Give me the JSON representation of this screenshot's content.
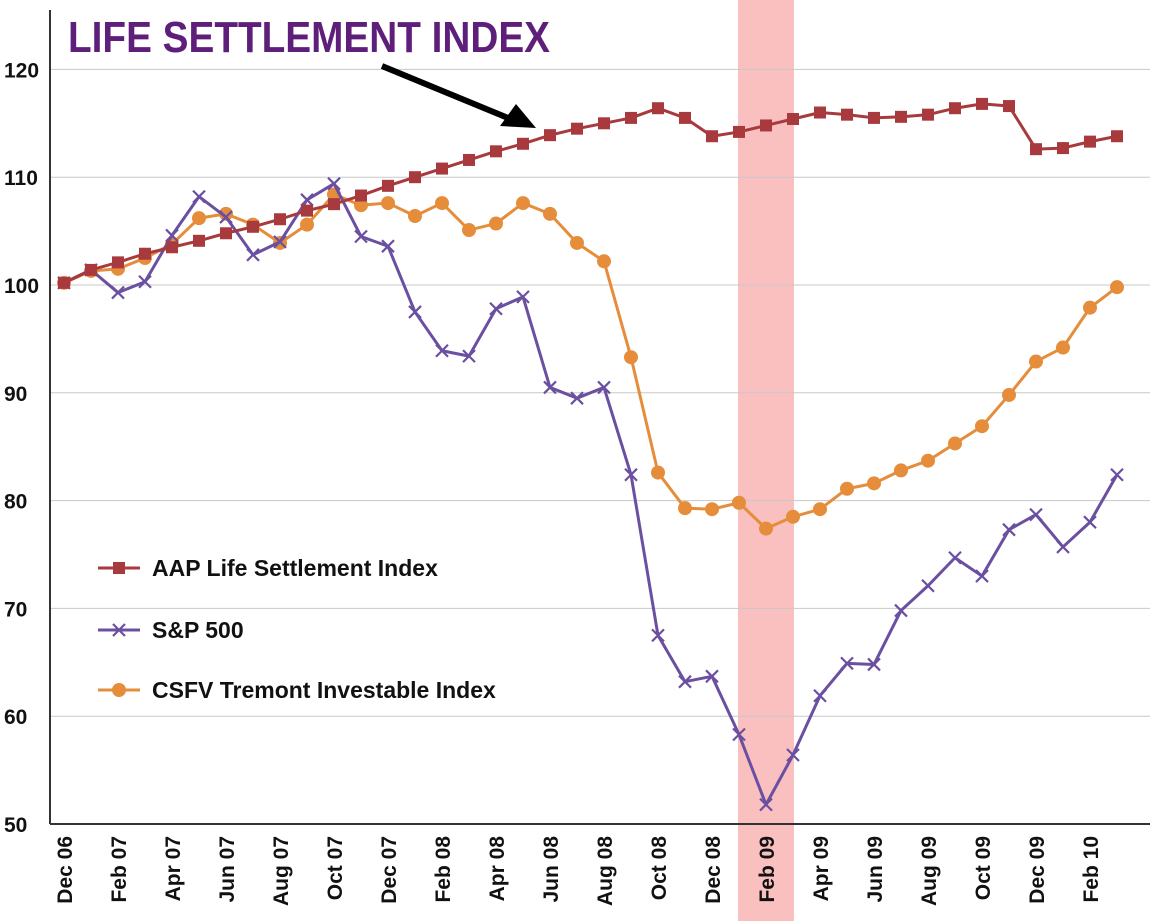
{
  "chart_data": {
    "type": "line",
    "title": "LIFE SETTLEMENT INDEX",
    "xlabel": "",
    "ylabel": "",
    "ylim": [
      50,
      125
    ],
    "yticks": [
      50,
      60,
      70,
      80,
      90,
      100,
      110,
      120
    ],
    "grid": true,
    "legend_position": "lower-left",
    "highlight": {
      "label": "Feb 09",
      "index": 26
    },
    "categories": [
      "Dec 06",
      "Jan 07",
      "Feb 07",
      "Mar 07",
      "Apr 07",
      "May 07",
      "Jun 07",
      "Jul 07",
      "Aug 07",
      "Sep 07",
      "Oct 07",
      "Nov 07",
      "Dec 07",
      "Jan 08",
      "Feb 08",
      "Mar 08",
      "Apr 08",
      "May 08",
      "Jun 08",
      "Jul 08",
      "Aug 08",
      "Sep 08",
      "Oct 08",
      "Nov 08",
      "Dec 08",
      "Jan 09",
      "Feb 09",
      "Mar 09",
      "Apr 09",
      "May 09",
      "Jun 09",
      "Jul 09",
      "Aug 09",
      "Sep 09",
      "Oct 09",
      "Nov 09",
      "Dec 09",
      "Jan 10",
      "Feb 10",
      "Mar 10"
    ],
    "xtick_labels": [
      "Dec 06",
      "Feb 07",
      "Apr 07",
      "Jun 07",
      "Aug 07",
      "Oct 07",
      "Dec 07",
      "Feb 08",
      "Apr 08",
      "Jun 08",
      "Aug 08",
      "Oct 08",
      "Dec 08",
      "Feb 09",
      "Apr 09",
      "Jun 09",
      "Aug 09",
      "Oct 09",
      "Dec 09",
      "Feb 10"
    ],
    "series": [
      {
        "name": "AAP Life Settlement Index",
        "color": "#a83a3e",
        "marker": "square",
        "values": [
          100.2,
          101.4,
          102.1,
          102.9,
          103.5,
          104.1,
          104.8,
          105.4,
          106.1,
          106.9,
          107.5,
          108.3,
          109.2,
          110.0,
          110.8,
          111.6,
          112.4,
          113.1,
          113.9,
          114.5,
          115.0,
          115.5,
          116.4,
          115.5,
          113.8,
          114.2,
          114.8,
          115.4,
          116.0,
          115.8,
          115.5,
          115.6,
          115.8,
          116.4,
          116.8,
          116.6,
          112.6,
          112.7,
          113.3,
          113.8
        ]
      },
      {
        "name": "S&P 500",
        "color": "#6b4fa0",
        "marker": "x",
        "values": [
          100.2,
          101.4,
          99.3,
          100.3,
          104.6,
          108.2,
          106.3,
          102.8,
          104.0,
          107.9,
          109.4,
          104.5,
          103.6,
          97.5,
          93.9,
          93.4,
          97.8,
          98.9,
          90.5,
          89.5,
          90.5,
          82.4,
          67.5,
          63.2,
          63.7,
          58.3,
          51.8,
          56.4,
          61.9,
          64.9,
          64.8,
          69.8,
          72.1,
          74.7,
          73.0,
          77.3,
          78.7,
          75.7,
          78.0,
          82.4
        ]
      },
      {
        "name": "CSFV Tremont Investable Index",
        "color": "#e58d3a",
        "marker": "circle",
        "values": [
          100.2,
          101.3,
          101.5,
          102.5,
          103.8,
          106.2,
          106.6,
          105.6,
          103.9,
          105.6,
          108.4,
          107.4,
          107.6,
          106.4,
          107.6,
          105.1,
          105.7,
          107.6,
          106.6,
          103.9,
          102.2,
          93.3,
          82.6,
          79.3,
          79.2,
          79.8,
          77.4,
          78.5,
          79.2,
          81.1,
          81.6,
          82.8,
          83.7,
          85.3,
          86.9,
          89.8,
          92.9,
          94.2,
          97.9,
          99.8
        ]
      }
    ]
  }
}
